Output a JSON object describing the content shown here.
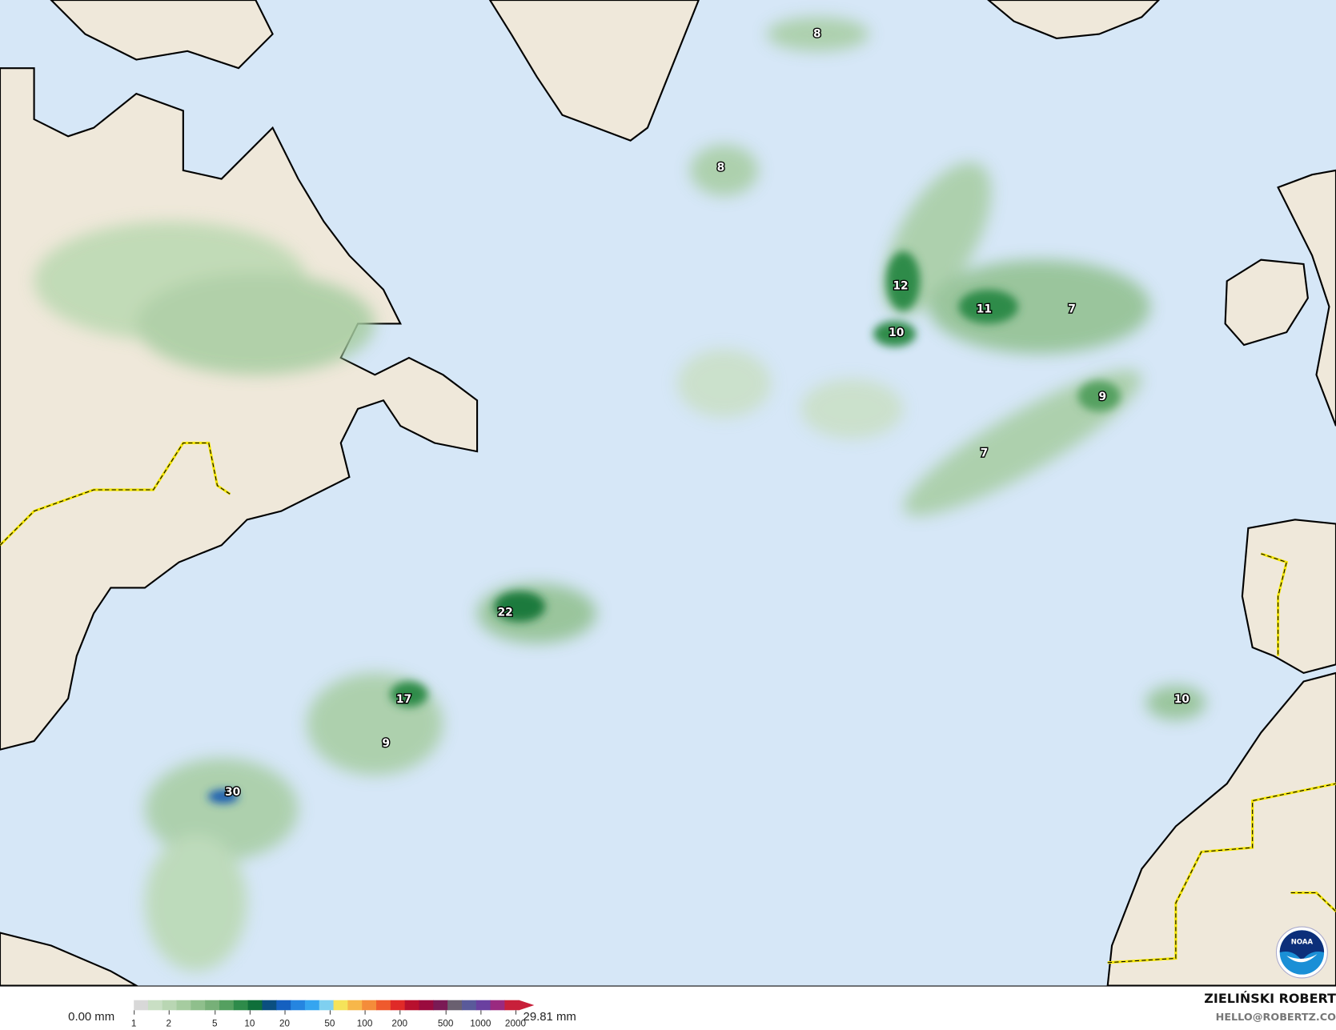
{
  "map": {
    "type": "precipitation accumulation map",
    "colors": {
      "ocean": "#d6e7f7",
      "land": "#efe8da",
      "coast": "#000000",
      "border_highlight": "#f4e600",
      "rain_light": "#b9d8b0",
      "rain_mid": "#6fb27a",
      "rain_heavy": "#1f7a3c",
      "rain_extreme": "#1e5fb0"
    },
    "value_labels": [
      {
        "value": "8",
        "region": "south of Iceland"
      },
      {
        "value": "8",
        "region": "south of Greenland"
      },
      {
        "value": "12",
        "region": "central North Atlantic"
      },
      {
        "value": "11",
        "region": "central North Atlantic"
      },
      {
        "value": "7",
        "region": "west of Ireland"
      },
      {
        "value": "10",
        "region": "central North Atlantic"
      },
      {
        "value": "9",
        "region": "west of Bay of Biscay"
      },
      {
        "value": "7",
        "region": "mid Atlantic band"
      },
      {
        "value": "22",
        "region": "east of Bermuda"
      },
      {
        "value": "17",
        "region": "near Bermuda"
      },
      {
        "value": "9",
        "region": "south of Bermuda"
      },
      {
        "value": "30",
        "region": "north of Bahamas"
      },
      {
        "value": "10",
        "region": "west of Morocco"
      }
    ],
    "logo": "NOAA"
  },
  "legend": {
    "min_label": "0.00 mm",
    "max_label": "29.81 mm",
    "ticks": [
      "1",
      "2",
      "5",
      "10",
      "20",
      "50",
      "100",
      "200",
      "500",
      "1000",
      "2000"
    ],
    "colors": [
      "#d8d8d8",
      "#c9dfc4",
      "#b9d6b3",
      "#a6cca0",
      "#8fbf8c",
      "#77b078",
      "#55a060",
      "#2e8b4a",
      "#0f6f3a",
      "#0b4f80",
      "#1560c0",
      "#2585e0",
      "#35a5f0",
      "#7fd0f0",
      "#f5e35a",
      "#f7b74a",
      "#f48c3a",
      "#ef5a2d",
      "#e02a28",
      "#b8102e",
      "#9a0b3e",
      "#7a1a55",
      "#6a6070",
      "#5a5a9a",
      "#6a40a0",
      "#9a2a80",
      "#c8203a"
    ]
  },
  "credits": {
    "author": "ZIELIŃSKI ROBERT",
    "email": "HELLO@ROBERTZ.CO"
  }
}
